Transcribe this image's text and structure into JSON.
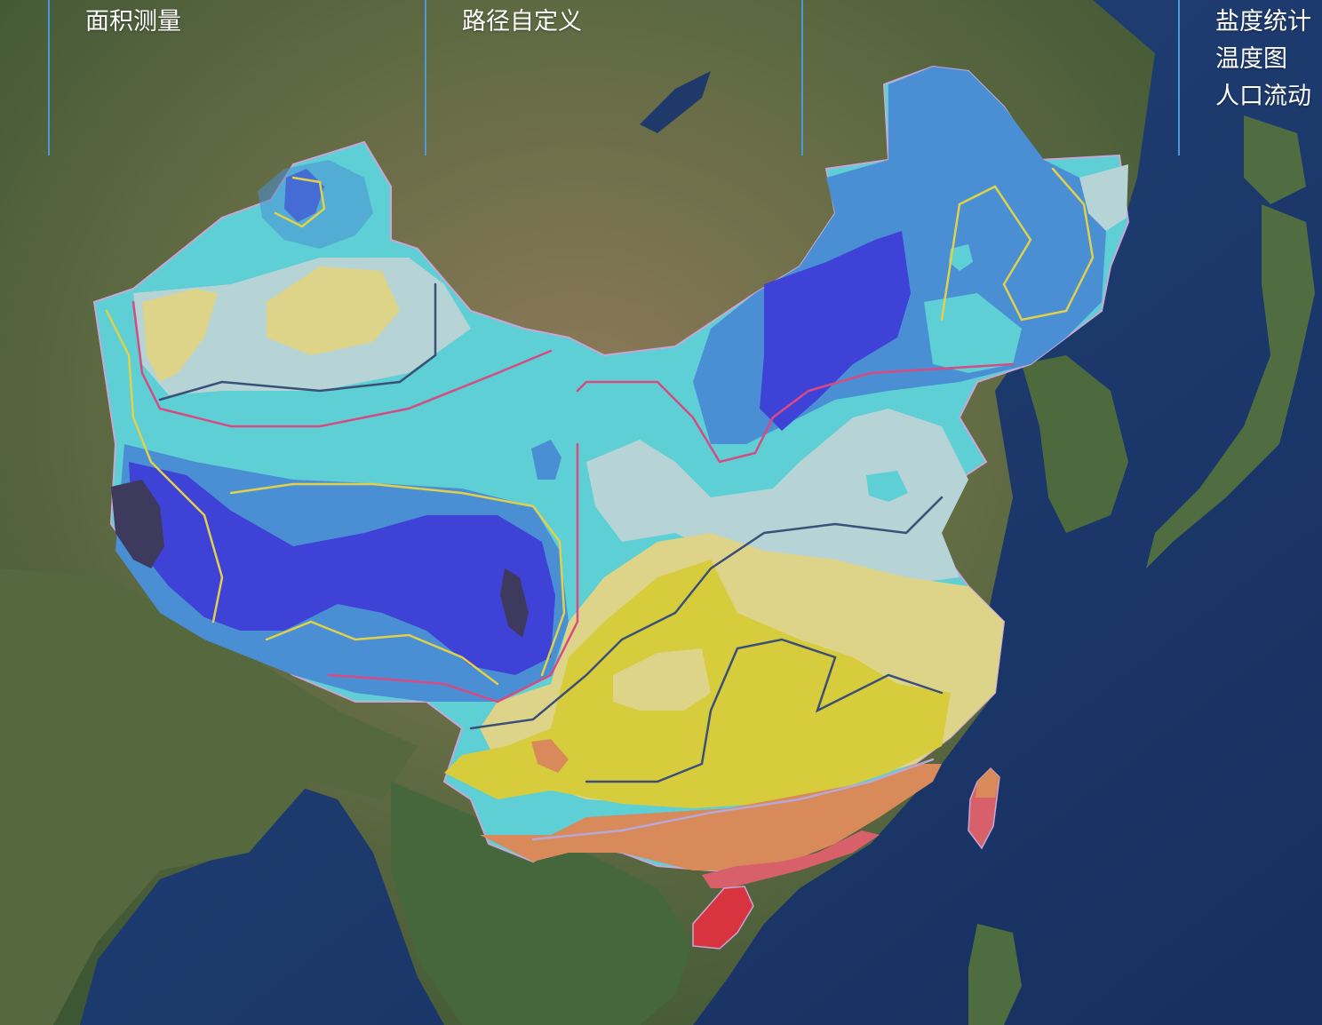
{
  "menu": {
    "groups": [
      {
        "items": [
          "面积测量"
        ]
      },
      {
        "items": [
          "路径自定义"
        ]
      },
      {
        "items": []
      },
      {
        "items": [
          "盐度统计",
          "温度图",
          "人口流动"
        ]
      }
    ]
  },
  "map": {
    "layer": "temperature-contour",
    "colors": {
      "ocean": "#1c3a6e",
      "land_dark": "#3f5a35",
      "land_arid": "#8a7658",
      "class_1": "#3d3a5e",
      "class_2": "#3f42d6",
      "class_3": "#4a8fd4",
      "class_4": "#5ecfd4",
      "class_5": "#b6d3d6",
      "class_6": "#ddd48a",
      "class_7": "#d6cc3c",
      "class_8": "#d88a5a",
      "class_9": "#d8606a",
      "class_10": "#d83440"
    }
  }
}
